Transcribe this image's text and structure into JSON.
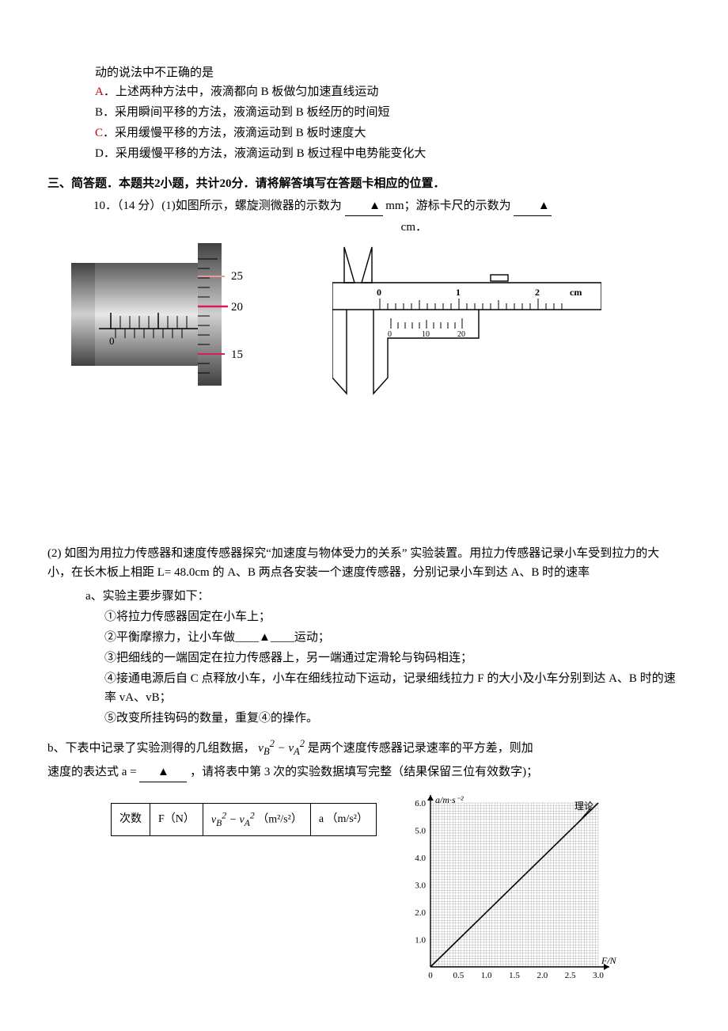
{
  "q_intro_line": "动的说法中不正确的是",
  "options": {
    "A": {
      "letter": "A",
      "text": "．上述两种方法中，液滴都向 B 板做匀加速直线运动",
      "color": "#c00000"
    },
    "B": {
      "letter": "B",
      "text": "．采用瞬间平移的方法，液滴运动到 B 板经历的时间短",
      "color": "#000000"
    },
    "C": {
      "letter": "C",
      "text": "．采用缓慢平移的方法，液滴运动到 B 板时速度大",
      "color": "#c00000"
    },
    "D": {
      "letter": "D",
      "text": "．采用缓慢平移的方法，液滴运动到 B 板过程中电势能变化大",
      "color": "#000000"
    }
  },
  "section3_header": "三、简答题．本题共2小题，共计20分．请将解答填写在答题卡相应的位置．",
  "q10": {
    "line1_a": "10．（14 分）(1)如图所示，螺旋测微器的示数为",
    "line1_b": "mm；游标卡尺的示数为",
    "line2_tail": "cm．",
    "blank_tri": "▲"
  },
  "micrometer": {
    "thimble_labels": [
      "25",
      "20",
      "15"
    ],
    "main_zero": "0",
    "body_gradient_from": "#5a5a5a",
    "body_gradient_to": "#b8b8b8",
    "tick_color": "#000000",
    "mark_color": "#d81b60",
    "mark_color_light": "#ef9a9a"
  },
  "caliper": {
    "main_labels": [
      "0",
      "1",
      "2"
    ],
    "unit_label": "cm",
    "vernier_labels": [
      "0",
      "10",
      "20"
    ],
    "stroke": "#000000"
  },
  "part2": {
    "p1": "(2)  如图为用拉力传感器和速度传感器探究“加速度与物体受力的关系” 实验装置。用拉力传感器记录小车受到拉力的大小，在长木板上相距 L= 48.0cm 的 A、B 两点各安装一个速度传感器，分别记录小车到达 A、B 时的速率",
    "a_head": "a、实验主要步骤如下：",
    "steps": [
      "①将拉力传感器固定在小车上；",
      "②平衡摩擦力，让小车做____▲____运动；",
      "③把细线的一端固定在拉力传感器上，另一端通过定滑轮与钩码相连；",
      "④接通电源后自 C 点释放小车，小车在细线拉动下运动，记录细线拉力 F 的大小及小车分别到达 A、B 时的速率 vA、vB；",
      "⑤改变所挂钩码的数量，重复④的操作。"
    ],
    "b_line_a": "b、下表中记录了实验测得的几组数据，",
    "b_formula": "v_B^2 − v_A^2",
    "b_line_b": "是两个速度传感器记录速率的平方差，则加",
    "b_line2_a": "速度的表达式 a =",
    "b_line2_b": "，请将表中第 3 次的实验数据填写完整（结果保留三位有效数字)；",
    "blank_tri": "▲"
  },
  "table": {
    "headers": [
      "次数",
      "F（N）",
      "v_B^2 − v_A^2  （m²/s²）",
      "a （m/s²）"
    ]
  },
  "chart": {
    "type": "line",
    "ylabel": "a/m·s⁻²",
    "xlabel": "F/N",
    "legend": "理论",
    "xlim": [
      0,
      3.0
    ],
    "ylim": [
      0,
      6.0
    ],
    "xtick_step": 0.5,
    "ytick_step": 1.0,
    "xticks": [
      "0",
      "0.5",
      "1.0",
      "1.5",
      "2.0",
      "2.5",
      "3.0"
    ],
    "yticks": [
      "0",
      "1.0",
      "2.0",
      "3.0",
      "4.0",
      "5.0",
      "6.0"
    ],
    "line_from": [
      0,
      0
    ],
    "line_to": [
      3.0,
      6.0
    ],
    "grid_minor": 10,
    "axis_color": "#000000",
    "grid_color": "#000000",
    "bg_color": "#ffffff",
    "label_fontsize": 11
  }
}
